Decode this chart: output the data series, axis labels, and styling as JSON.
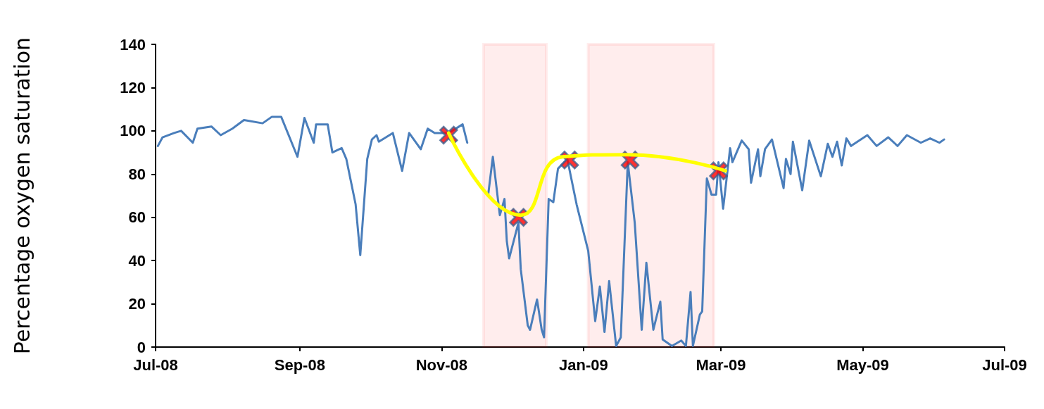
{
  "chart_data": {
    "type": "line",
    "ylabel": "Percentage oxygen saturation",
    "xlim": [
      "2008-07-01",
      "2009-07-01"
    ],
    "xticks": [
      {
        "value": "2008-07-01",
        "label": "Jul-08"
      },
      {
        "value": "2008-09-01",
        "label": "Sep-08"
      },
      {
        "value": "2008-11-01",
        "label": "Nov-08"
      },
      {
        "value": "2009-01-01",
        "label": "Jan-09"
      },
      {
        "value": "2009-03-01",
        "label": "Mar-09"
      },
      {
        "value": "2009-05-01",
        "label": "May-09"
      },
      {
        "value": "2009-07-01",
        "label": "Jul-09"
      }
    ],
    "ylim": [
      0,
      140
    ],
    "yticks": [
      0,
      20,
      40,
      60,
      80,
      100,
      120,
      140
    ],
    "grid": false,
    "marker": "none",
    "line_style": "solid",
    "bands": [
      {
        "axis": "x",
        "from": "2008-11-19",
        "to": "2008-12-16",
        "color": "#ff0000"
      },
      {
        "axis": "x",
        "from": "2009-01-03",
        "to": "2009-02-26",
        "color": "#ff0000"
      }
    ],
    "series": [
      {
        "color": "#4a7ebb",
        "x": [
          "2008-07-02",
          "2008-07-04",
          "2008-07-09",
          "2008-07-12",
          "2008-07-17",
          "2008-07-19",
          "2008-07-25",
          "2008-07-29",
          "2008-08-03",
          "2008-08-08",
          "2008-08-16",
          "2008-08-20",
          "2008-08-24",
          "2008-08-31",
          "2008-09-03",
          "2008-09-07",
          "2008-09-08",
          "2008-09-13",
          "2008-09-15",
          "2008-09-19",
          "2008-09-21",
          "2008-09-25",
          "2008-09-27",
          "2008-09-30",
          "2008-10-02",
          "2008-10-04",
          "2008-10-05",
          "2008-10-11",
          "2008-10-15",
          "2008-10-18",
          "2008-10-23",
          "2008-10-26",
          "2008-10-29",
          "2008-11-04",
          "2008-11-10",
          "2008-11-12",
          "2008-11-16",
          "2008-11-21",
          "2008-11-23",
          "2008-11-26",
          "2008-11-28",
          "2008-11-29",
          "2008-11-30",
          "2008-12-04",
          "2008-12-05",
          "2008-12-08",
          "2008-12-09",
          "2008-12-12",
          "2008-12-14",
          "2008-12-15",
          "2008-12-17",
          "2008-12-19",
          "2008-12-21",
          "2008-12-25",
          "2008-12-29",
          "2009-01-03",
          "2009-01-06",
          "2009-01-08",
          "2009-01-10",
          "2009-01-12",
          "2009-01-15",
          "2009-01-17",
          "2009-01-20",
          "2009-01-23",
          "2009-01-26",
          "2009-01-28",
          "2009-01-31",
          "2009-02-03",
          "2009-02-04",
          "2009-02-08",
          "2009-02-12",
          "2009-02-14",
          "2009-02-16",
          "2009-02-17",
          "2009-02-20",
          "2009-02-21",
          "2009-02-23",
          "2009-02-25",
          "2009-02-27",
          "2009-02-28",
          "2009-03-02",
          "2009-03-05",
          "2009-03-06",
          "2009-03-10",
          "2009-03-13",
          "2009-03-14",
          "2009-03-17",
          "2009-03-18",
          "2009-03-20",
          "2009-03-23",
          "2009-03-28",
          "2009-03-29",
          "2009-03-31",
          "2009-04-01",
          "2009-04-05",
          "2009-04-08",
          "2009-04-13",
          "2009-04-16",
          "2009-04-18",
          "2009-04-20",
          "2009-04-22",
          "2009-04-24",
          "2009-04-26",
          "2009-05-03",
          "2009-05-07",
          "2009-05-12",
          "2009-05-16",
          "2009-05-20",
          "2009-05-26",
          "2009-05-30",
          "2009-06-03",
          "2009-06-05"
        ],
        "values": [
          93,
          97,
          99,
          100,
          94.5,
          101,
          102,
          98,
          101,
          105,
          103.5,
          106.5,
          106.5,
          88,
          106,
          94.5,
          103,
          103,
          90,
          92,
          87,
          66,
          42.5,
          87,
          96,
          98,
          95,
          99,
          81.5,
          99,
          91.5,
          101,
          99,
          99,
          103,
          94.5,
          null,
          70.5,
          88,
          61,
          68.5,
          49,
          41,
          57.5,
          36,
          10,
          8,
          22,
          8,
          4.5,
          68.5,
          67,
          82.5,
          87,
          66,
          44.5,
          12,
          28,
          7,
          30.5,
          0.5,
          4.5,
          85.5,
          57.5,
          8,
          39,
          8,
          21,
          3.5,
          0.5,
          3,
          0.5,
          25.5,
          0.5,
          15,
          16.5,
          78,
          70.5,
          70.5,
          85.5,
          64,
          92,
          85.5,
          95.5,
          91.5,
          76,
          91.5,
          79,
          91.5,
          96,
          73.5,
          87,
          80,
          95,
          72.5,
          95.5,
          79,
          94,
          88,
          95,
          84,
          96.5,
          93,
          98,
          93,
          97,
          93,
          98,
          94.5,
          96.5,
          94.5,
          96
        ]
      },
      {
        "type": "scatter",
        "marker": "cross",
        "color": "#ff0000",
        "x": [
          "2008-11-04",
          "2008-12-04",
          "2008-12-26",
          "2009-01-21",
          "2009-02-28"
        ],
        "values": [
          98,
          60,
          86.5,
          86.5,
          81.5
        ]
      },
      {
        "type": "line",
        "color": "#ffff00",
        "x": [
          "2008-11-04",
          "2008-12-05",
          "2008-12-23",
          "2009-01-20",
          "2009-03-03"
        ],
        "values": [
          99,
          61,
          88,
          89,
          81.5
        ]
      }
    ]
  }
}
